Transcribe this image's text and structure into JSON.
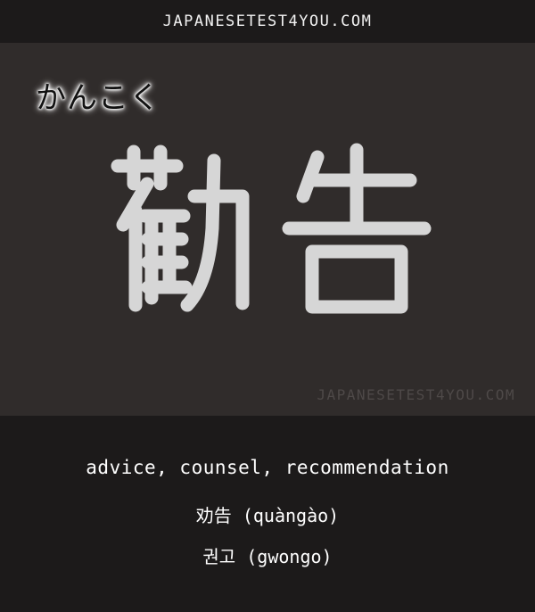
{
  "header": {
    "site_name": "JAPANESETEST4YOU.COM"
  },
  "card": {
    "reading": "かんこく",
    "kanji": "勧告",
    "watermark": "JAPANESETEST4YOU.COM"
  },
  "translations": {
    "meaning": "advice, counsel, recommendation",
    "chinese": "劝告 (quàngào)",
    "korean": "권고 (gwongo)"
  },
  "colors": {
    "background": "#1c1a1a",
    "board": "#302c2b",
    "text": "#ffffff",
    "watermark": "#4e4948"
  }
}
